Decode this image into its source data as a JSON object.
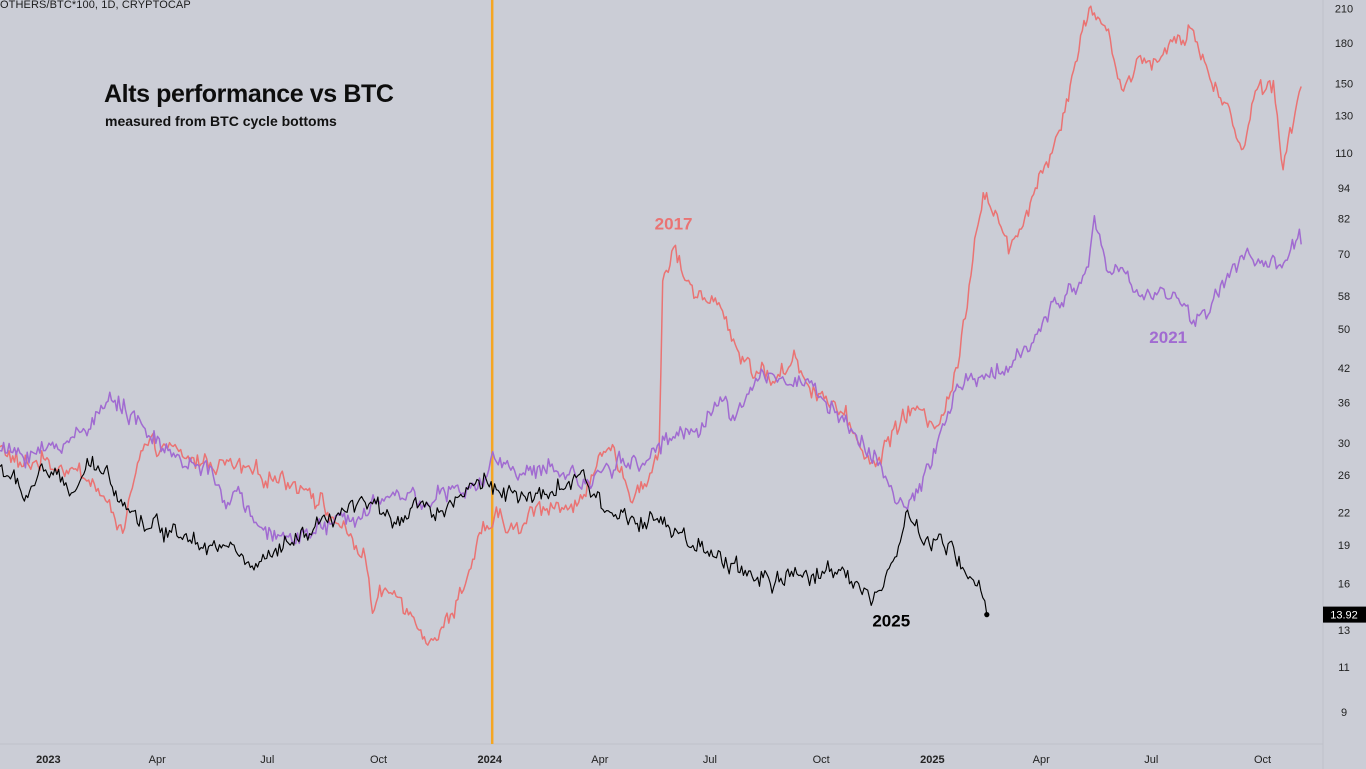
{
  "header": {
    "symbol": "OTHERS/BTC*100, 1D, CRYPTOCAP"
  },
  "chart_data": {
    "type": "line",
    "title": "Alts performance vs BTC",
    "subtitle": "measured from BTC cycle bottoms",
    "y_scale": "log",
    "ylim": [
      7.8,
      218
    ],
    "y_ticks": [
      210,
      180,
      150,
      130,
      110,
      94,
      82,
      70,
      58,
      50,
      42,
      36,
      30,
      26,
      22,
      19,
      16,
      13,
      11,
      9
    ],
    "x_range": [
      "2022-11-22",
      "2025-11-20"
    ],
    "x_ticks": [
      {
        "date": "2023-01-01",
        "label": "2023",
        "major": true
      },
      {
        "date": "2023-04-01",
        "label": "Apr",
        "major": false
      },
      {
        "date": "2023-07-01",
        "label": "Jul",
        "major": false
      },
      {
        "date": "2023-10-01",
        "label": "Oct",
        "major": false
      },
      {
        "date": "2024-01-01",
        "label": "2024",
        "major": true
      },
      {
        "date": "2024-04-01",
        "label": "Apr",
        "major": false
      },
      {
        "date": "2024-07-01",
        "label": "Jul",
        "major": false
      },
      {
        "date": "2024-10-01",
        "label": "Oct",
        "major": false
      },
      {
        "date": "2025-01-01",
        "label": "2025",
        "major": true
      },
      {
        "date": "2025-04-01",
        "label": "Apr",
        "major": false
      },
      {
        "date": "2025-07-01",
        "label": "Jul",
        "major": false
      },
      {
        "date": "2025-10-01",
        "label": "Oct",
        "major": false
      }
    ],
    "vertical_marker_date": "2024-01-03",
    "last_value_label": "13.92",
    "series": [
      {
        "name": "2017",
        "label": "2017",
        "color": "#ea7373",
        "points": [
          [
            "2022-11-22",
            29.5
          ],
          [
            "2022-12-10",
            27
          ],
          [
            "2022-12-28",
            28
          ],
          [
            "2023-01-10",
            27
          ],
          [
            "2023-01-25",
            26.5
          ],
          [
            "2023-02-08",
            25
          ],
          [
            "2023-02-22",
            22
          ],
          [
            "2023-03-05",
            20.5
          ],
          [
            "2023-03-10",
            24
          ],
          [
            "2023-03-20",
            29
          ],
          [
            "2023-04-05",
            29.5
          ],
          [
            "2023-04-25",
            28
          ],
          [
            "2023-05-15",
            27.5
          ],
          [
            "2023-06-05",
            27
          ],
          [
            "2023-06-25",
            26
          ],
          [
            "2023-07-15",
            25.5
          ],
          [
            "2023-08-05",
            24.5
          ],
          [
            "2023-08-20",
            22
          ],
          [
            "2023-09-05",
            20
          ],
          [
            "2023-09-20",
            18
          ],
          [
            "2023-09-26",
            14
          ],
          [
            "2023-10-05",
            15.5
          ],
          [
            "2023-10-20",
            15
          ],
          [
            "2023-11-05",
            13
          ],
          [
            "2023-11-18",
            12.4
          ],
          [
            "2023-12-01",
            14
          ],
          [
            "2023-12-15",
            17
          ],
          [
            "2023-12-25",
            20
          ],
          [
            "2024-01-08",
            21.5
          ],
          [
            "2024-01-25",
            20
          ],
          [
            "2024-02-08",
            22.5
          ],
          [
            "2024-02-25",
            23
          ],
          [
            "2024-03-10",
            22
          ],
          [
            "2024-03-25",
            26
          ],
          [
            "2024-04-10",
            29
          ],
          [
            "2024-04-25",
            24
          ],
          [
            "2024-05-08",
            25
          ],
          [
            "2024-05-20",
            29
          ],
          [
            "2024-05-23",
            62
          ],
          [
            "2024-06-01",
            72
          ],
          [
            "2024-06-12",
            62
          ],
          [
            "2024-06-25",
            57
          ],
          [
            "2024-07-10",
            55
          ],
          [
            "2024-07-25",
            45
          ],
          [
            "2024-08-10",
            41
          ],
          [
            "2024-08-25",
            40
          ],
          [
            "2024-09-10",
            44
          ],
          [
            "2024-09-20",
            39
          ],
          [
            "2024-10-05",
            37
          ],
          [
            "2024-10-20",
            34
          ],
          [
            "2024-11-01",
            30
          ],
          [
            "2024-11-15",
            27
          ],
          [
            "2024-11-30",
            32
          ],
          [
            "2024-12-15",
            35
          ],
          [
            "2024-12-31",
            33
          ],
          [
            "2025-01-10",
            34
          ],
          [
            "2025-01-22",
            42
          ],
          [
            "2025-02-05",
            75
          ],
          [
            "2025-02-12",
            92
          ],
          [
            "2025-02-22",
            85
          ],
          [
            "2025-03-05",
            70
          ],
          [
            "2025-03-20",
            85
          ],
          [
            "2025-03-30",
            100
          ],
          [
            "2025-04-10",
            110
          ],
          [
            "2025-04-22",
            140
          ],
          [
            "2025-05-05",
            190
          ],
          [
            "2025-05-12",
            212
          ],
          [
            "2025-05-25",
            190
          ],
          [
            "2025-06-08",
            145
          ],
          [
            "2025-06-22",
            170
          ],
          [
            "2025-07-06",
            165
          ],
          [
            "2025-07-20",
            185
          ],
          [
            "2025-08-05",
            190
          ],
          [
            "2025-08-20",
            150
          ],
          [
            "2025-09-05",
            130
          ],
          [
            "2025-09-15",
            112
          ],
          [
            "2025-09-25",
            145
          ],
          [
            "2025-10-10",
            152
          ],
          [
            "2025-10-18",
            102
          ],
          [
            "2025-10-28",
            132
          ],
          [
            "2025-11-02",
            148
          ]
        ]
      },
      {
        "name": "2021",
        "label": "2021",
        "color": "#a16bd1",
        "points": [
          [
            "2022-11-22",
            29
          ],
          [
            "2022-12-10",
            28.5
          ],
          [
            "2022-12-28",
            29
          ],
          [
            "2023-01-15",
            30
          ],
          [
            "2023-01-30",
            32
          ],
          [
            "2023-02-15",
            35
          ],
          [
            "2023-02-28",
            37
          ],
          [
            "2023-03-10",
            34
          ],
          [
            "2023-03-25",
            31
          ],
          [
            "2023-04-10",
            29
          ],
          [
            "2023-04-25",
            27
          ],
          [
            "2023-05-10",
            27.5
          ],
          [
            "2023-05-25",
            23
          ],
          [
            "2023-06-10",
            24
          ],
          [
            "2023-06-20",
            21
          ],
          [
            "2023-07-01",
            19.5
          ],
          [
            "2023-07-20",
            20
          ],
          [
            "2023-08-10",
            20
          ],
          [
            "2023-08-25",
            21
          ],
          [
            "2023-09-10",
            21.5
          ],
          [
            "2023-09-25",
            23
          ],
          [
            "2023-10-10",
            23.5
          ],
          [
            "2023-10-25",
            24
          ],
          [
            "2023-11-10",
            23
          ],
          [
            "2023-11-25",
            24
          ],
          [
            "2023-12-10",
            24
          ],
          [
            "2023-12-25",
            25
          ],
          [
            "2024-01-05",
            28
          ],
          [
            "2024-01-20",
            27
          ],
          [
            "2024-02-05",
            26
          ],
          [
            "2024-02-20",
            27
          ],
          [
            "2024-03-05",
            26
          ],
          [
            "2024-03-20",
            25
          ],
          [
            "2024-04-05",
            27
          ],
          [
            "2024-04-20",
            28
          ],
          [
            "2024-05-05",
            27
          ],
          [
            "2024-05-20",
            30
          ],
          [
            "2024-06-05",
            31
          ],
          [
            "2024-06-20",
            32
          ],
          [
            "2024-07-05",
            36
          ],
          [
            "2024-07-20",
            34
          ],
          [
            "2024-08-05",
            38
          ],
          [
            "2024-08-20",
            41
          ],
          [
            "2024-09-05",
            39
          ],
          [
            "2024-09-20",
            40
          ],
          [
            "2024-10-05",
            36
          ],
          [
            "2024-10-20",
            33
          ],
          [
            "2024-11-05",
            30
          ],
          [
            "2024-11-20",
            27
          ],
          [
            "2024-12-01",
            23
          ],
          [
            "2024-12-10",
            22.5
          ],
          [
            "2024-12-20",
            24
          ],
          [
            "2025-01-05",
            30
          ],
          [
            "2025-01-20",
            38
          ],
          [
            "2025-02-05",
            40
          ],
          [
            "2025-02-25",
            41
          ],
          [
            "2025-03-15",
            44
          ],
          [
            "2025-03-30",
            50
          ],
          [
            "2025-04-15",
            56
          ],
          [
            "2025-04-28",
            60
          ],
          [
            "2025-05-10",
            66
          ],
          [
            "2025-05-15",
            83
          ],
          [
            "2025-05-25",
            65
          ],
          [
            "2025-06-10",
            64
          ],
          [
            "2025-06-25",
            57
          ],
          [
            "2025-07-10",
            60
          ],
          [
            "2025-07-25",
            56
          ],
          [
            "2025-08-05",
            52
          ],
          [
            "2025-08-20",
            56
          ],
          [
            "2025-09-05",
            65
          ],
          [
            "2025-09-20",
            70
          ],
          [
            "2025-10-05",
            66
          ],
          [
            "2025-10-20",
            68
          ],
          [
            "2025-10-30",
            75
          ],
          [
            "2025-11-02",
            73
          ]
        ]
      },
      {
        "name": "2025",
        "label": "2025",
        "color": "#000000",
        "points": [
          [
            "2022-11-22",
            27
          ],
          [
            "2022-12-05",
            25
          ],
          [
            "2022-12-15",
            23.5
          ],
          [
            "2022-12-25",
            27
          ],
          [
            "2023-01-05",
            26
          ],
          [
            "2023-01-20",
            24
          ],
          [
            "2023-02-05",
            27
          ],
          [
            "2023-02-20",
            26
          ],
          [
            "2023-03-05",
            23
          ],
          [
            "2023-03-20",
            21
          ],
          [
            "2023-04-05",
            20.5
          ],
          [
            "2023-04-25",
            20
          ],
          [
            "2023-05-15",
            19
          ],
          [
            "2023-06-05",
            18.5
          ],
          [
            "2023-06-20",
            17
          ],
          [
            "2023-07-05",
            18
          ],
          [
            "2023-07-20",
            19
          ],
          [
            "2023-08-05",
            20
          ],
          [
            "2023-08-20",
            21
          ],
          [
            "2023-09-05",
            22
          ],
          [
            "2023-09-20",
            23
          ],
          [
            "2023-10-05",
            22
          ],
          [
            "2023-10-20",
            21.5
          ],
          [
            "2023-11-05",
            23
          ],
          [
            "2023-11-20",
            22
          ],
          [
            "2023-12-05",
            23.5
          ],
          [
            "2023-12-20",
            25
          ],
          [
            "2024-01-05",
            25
          ],
          [
            "2024-01-20",
            24
          ],
          [
            "2024-02-05",
            23
          ],
          [
            "2024-02-20",
            24
          ],
          [
            "2024-03-05",
            25
          ],
          [
            "2024-03-20",
            25.5
          ],
          [
            "2024-04-05",
            22
          ],
          [
            "2024-04-20",
            22
          ],
          [
            "2024-05-05",
            21.5
          ],
          [
            "2024-05-20",
            21
          ],
          [
            "2024-06-05",
            20
          ],
          [
            "2024-06-20",
            18.5
          ],
          [
            "2024-07-05",
            18
          ],
          [
            "2024-07-20",
            17.5
          ],
          [
            "2024-08-05",
            16.5
          ],
          [
            "2024-08-20",
            16
          ],
          [
            "2024-09-05",
            16.5
          ],
          [
            "2024-09-20",
            16.5
          ],
          [
            "2024-10-05",
            17
          ],
          [
            "2024-10-20",
            17
          ],
          [
            "2024-11-01",
            16
          ],
          [
            "2024-11-10",
            15
          ],
          [
            "2024-11-20",
            15.5
          ],
          [
            "2024-12-01",
            18
          ],
          [
            "2024-12-10",
            22
          ],
          [
            "2024-12-25",
            19
          ],
          [
            "2025-01-05",
            19.5
          ],
          [
            "2025-01-20",
            18
          ],
          [
            "2025-02-01",
            16.5
          ],
          [
            "2025-02-10",
            15.5
          ],
          [
            "2025-02-15",
            13.92
          ]
        ]
      }
    ]
  }
}
